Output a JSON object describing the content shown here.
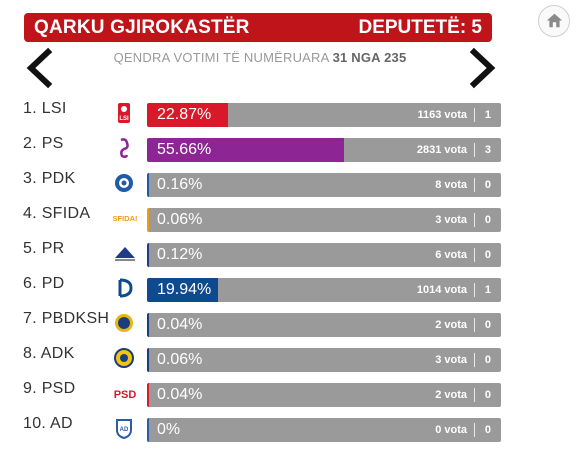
{
  "header": {
    "title": "QARKU GJIROKASTËR",
    "seats": "DEPUTETË: 5"
  },
  "counted": {
    "prefix": "QENDRA VOTIMI TË NUMËRUARA",
    "value": "31 NGA 235"
  },
  "colors": {
    "header_bg": "#c0141b",
    "bar_bg": "#9a9a9a"
  },
  "parties": [
    {
      "rank": "1. LSI",
      "logo": "lsi-logo",
      "pct": "22.87%",
      "share": 22.87,
      "color": "#d7192a",
      "votes": "1163 vota",
      "mandates": "1"
    },
    {
      "rank": "2. PS",
      "logo": "ps-logo",
      "pct": "55.66%",
      "share": 55.66,
      "color": "#8d2594",
      "votes": "2831 vota",
      "mandates": "3"
    },
    {
      "rank": "3. PDK",
      "logo": "pdk-logo",
      "pct": "0.16%",
      "share": 0.16,
      "color": "#1f5aa8",
      "votes": "8 vota",
      "mandates": "0"
    },
    {
      "rank": "4. SFIDA",
      "logo": "sfida-logo",
      "pct": "0.06%",
      "share": 0.06,
      "color": "#f39c12",
      "votes": "3 vota",
      "mandates": "0"
    },
    {
      "rank": "5. PR",
      "logo": "pr-logo",
      "pct": "0.12%",
      "share": 0.12,
      "color": "#1f3c88",
      "votes": "6 vota",
      "mandates": "0"
    },
    {
      "rank": "6. PD",
      "logo": "pd-logo",
      "pct": "19.94%",
      "share": 19.94,
      "color": "#0e4a8e",
      "votes": "1014 vota",
      "mandates": "1"
    },
    {
      "rank": "7. PBDKSH",
      "logo": "pbdksh-logo",
      "pct": "0.04%",
      "share": 0.04,
      "color": "#1a3d7c",
      "votes": "2 vota",
      "mandates": "0"
    },
    {
      "rank": "8. ADK",
      "logo": "adk-logo",
      "pct": "0.06%",
      "share": 0.06,
      "color": "#1a3d7c",
      "votes": "3 vota",
      "mandates": "0"
    },
    {
      "rank": "9. PSD",
      "logo": "psd-logo",
      "pct": "0.04%",
      "share": 0.04,
      "color": "#d7192a",
      "votes": "2 vota",
      "mandates": "0"
    },
    {
      "rank": "10. AD",
      "logo": "ad-logo",
      "pct": "0%",
      "share": 0,
      "color": "#2a5aa8",
      "votes": "0 vota",
      "mandates": "0"
    }
  ]
}
